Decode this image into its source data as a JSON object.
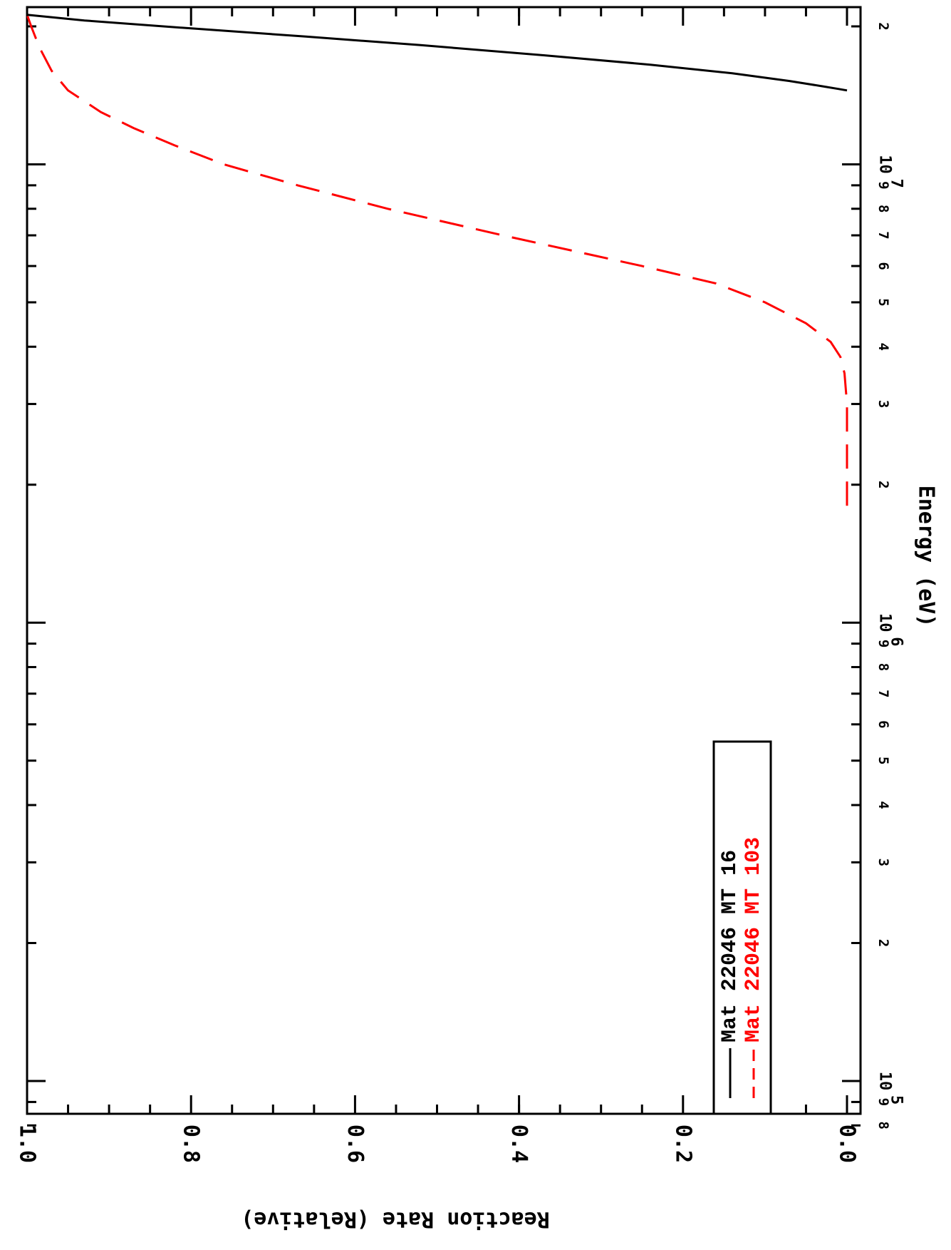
{
  "chart_data": {
    "type": "line",
    "orientation": "rotated-90-clockwise",
    "xlabel": "Energy (eV)",
    "ylabel": "Reaction Rate (Relative)",
    "xscale": "log",
    "xlim": [
      80000,
      22000000
    ],
    "ylim": [
      -0.02,
      1.02
    ],
    "x_tick_labels": [
      {
        "value": 80000,
        "label": "8"
      },
      {
        "value": 90000,
        "label": "9"
      },
      {
        "value": 200000,
        "label": "2"
      },
      {
        "value": 300000,
        "label": "3"
      },
      {
        "value": 400000,
        "label": "4"
      },
      {
        "value": 500000,
        "label": "5"
      },
      {
        "value": 600000,
        "label": "6"
      },
      {
        "value": 700000,
        "label": "7"
      },
      {
        "value": 800000,
        "label": "8"
      },
      {
        "value": 900000,
        "label": "9"
      },
      {
        "value": 2000000,
        "label": "2"
      },
      {
        "value": 3000000,
        "label": "3"
      },
      {
        "value": 4000000,
        "label": "4"
      },
      {
        "value": 5000000,
        "label": "5"
      },
      {
        "value": 6000000,
        "label": "6"
      },
      {
        "value": 7000000,
        "label": "7"
      },
      {
        "value": 8000000,
        "label": "8"
      },
      {
        "value": 9000000,
        "label": "9"
      },
      {
        "value": 20000000,
        "label": "2"
      }
    ],
    "x_major_labels": [
      {
        "value": 100000,
        "base": "10",
        "exp": "5"
      },
      {
        "value": 1000000,
        "base": "10",
        "exp": "6"
      },
      {
        "value": 10000000,
        "base": "10",
        "exp": "7"
      }
    ],
    "y_ticks": [
      0.0,
      0.2,
      0.4,
      0.6,
      0.8,
      1.0
    ],
    "y_tick_labels": [
      "0.0",
      "0.2",
      "0.4",
      "0.6",
      "0.8",
      "1.0"
    ],
    "legend": {
      "placement": "bottom-left",
      "entries": [
        {
          "mat_label": "Mat",
          "mat": "22046",
          "mt_label": "MT",
          "mt": "16",
          "color": "#000000",
          "style": "solid"
        },
        {
          "mat_label": "Mat",
          "mat": "22046",
          "mt_label": "MT",
          "mt": "103",
          "color": "#ff0000",
          "style": "dashed"
        }
      ]
    },
    "series": [
      {
        "color": "#000000",
        "style": "solid",
        "points": [
          [
            14500000,
            0.0
          ],
          [
            14600000,
            0.01
          ],
          [
            14800000,
            0.03
          ],
          [
            15200000,
            0.07
          ],
          [
            15800000,
            0.14
          ],
          [
            16500000,
            0.24
          ],
          [
            17300000,
            0.37
          ],
          [
            18200000,
            0.52
          ],
          [
            19000000,
            0.66
          ],
          [
            19800000,
            0.8
          ],
          [
            20600000,
            0.93
          ],
          [
            21200000,
            1.0
          ]
        ]
      },
      {
        "color": "#ff0000",
        "style": "dashed",
        "points": [
          [
            1800000,
            0.0
          ],
          [
            2500000,
            0.0
          ],
          [
            3000000,
            0.0
          ],
          [
            3500000,
            0.003
          ],
          [
            3800000,
            0.008
          ],
          [
            4100000,
            0.02
          ],
          [
            4500000,
            0.05
          ],
          [
            5000000,
            0.1
          ],
          [
            5500000,
            0.16
          ],
          [
            6000000,
            0.25
          ],
          [
            7000000,
            0.42
          ],
          [
            8000000,
            0.56
          ],
          [
            9000000,
            0.67
          ],
          [
            10000000,
            0.76
          ],
          [
            11000000,
            0.82
          ],
          [
            12000000,
            0.87
          ],
          [
            13000000,
            0.91
          ],
          [
            14500000,
            0.95
          ],
          [
            16000000,
            0.97
          ],
          [
            18000000,
            0.985
          ],
          [
            20000000,
            0.995
          ],
          [
            21200000,
            1.0
          ]
        ]
      }
    ]
  }
}
